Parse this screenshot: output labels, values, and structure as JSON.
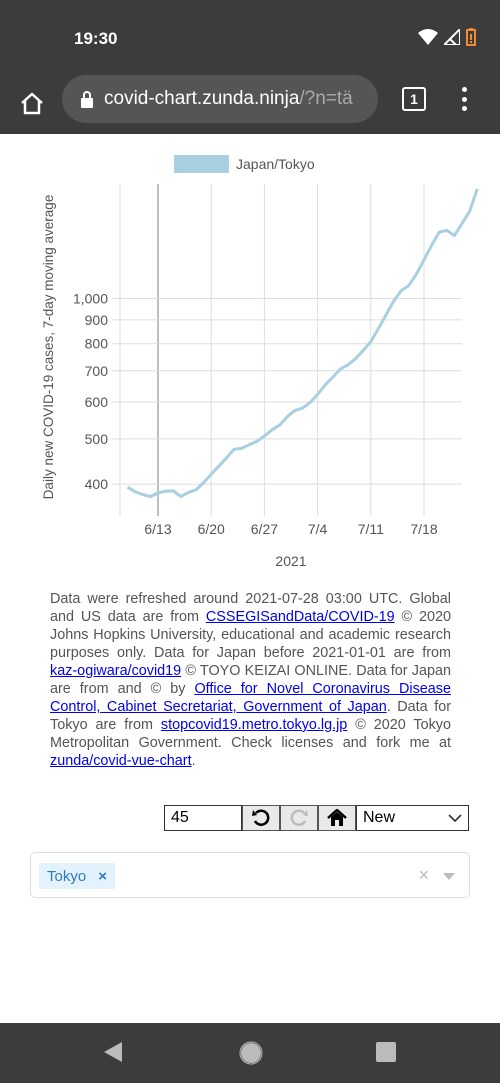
{
  "status_bar": {
    "time": "19:30"
  },
  "browser": {
    "url_host": "covid-chart.zunda.ninja",
    "url_path": "/?n=tä",
    "tab_count": "1"
  },
  "chart_data": {
    "type": "line",
    "y_scale": "log",
    "legend": "Japan/Tokyo",
    "xlabel": "2021",
    "ylabel": "Daily new COVID-19 cases, 7-day moving average",
    "x_ticks": [
      "6/13",
      "6/20",
      "6/27",
      "7/4",
      "7/11",
      "7/18"
    ],
    "y_ticks": [
      "400",
      "500",
      "600",
      "700",
      "800",
      "900",
      "1,000"
    ],
    "y_tick_values": [
      400,
      500,
      600,
      700,
      800,
      900,
      1000
    ],
    "series": [
      {
        "name": "Japan/Tokyo",
        "color": "#a9cfe2",
        "x": [
          "2021-06-09",
          "2021-06-10",
          "2021-06-11",
          "2021-06-12",
          "2021-06-13",
          "2021-06-14",
          "2021-06-15",
          "2021-06-16",
          "2021-06-17",
          "2021-06-18",
          "2021-06-19",
          "2021-06-20",
          "2021-06-21",
          "2021-06-22",
          "2021-06-23",
          "2021-06-24",
          "2021-06-25",
          "2021-06-26",
          "2021-06-27",
          "2021-06-28",
          "2021-06-29",
          "2021-06-30",
          "2021-07-01",
          "2021-07-02",
          "2021-07-03",
          "2021-07-04",
          "2021-07-05",
          "2021-07-06",
          "2021-07-07",
          "2021-07-08",
          "2021-07-09",
          "2021-07-10",
          "2021-07-11",
          "2021-07-12",
          "2021-07-13",
          "2021-07-14",
          "2021-07-15",
          "2021-07-16",
          "2021-07-17",
          "2021-07-18",
          "2021-07-19",
          "2021-07-20",
          "2021-07-21",
          "2021-07-22",
          "2021-07-23",
          "2021-07-24",
          "2021-07-25"
        ],
        "values": [
          394,
          385,
          380,
          376,
          383,
          386,
          387,
          376,
          384,
          389,
          403,
          420,
          437,
          455,
          475,
          477,
          486,
          494,
          507,
          523,
          535,
          558,
          575,
          582,
          598,
          623,
          653,
          678,
          706,
          721,
          743,
          774,
          808,
          862,
          922,
          987,
          1040,
          1066,
          1128,
          1210,
          1300,
          1388,
          1400,
          1364,
          1448,
          1537,
          1718
        ]
      }
    ]
  },
  "footer": {
    "p1": "Data were refreshed around 2021-07-28 03:00 UTC. Global and US data are from ",
    "link1": "CSSEGISandData/COVID-19",
    "p2": " © 2020 Johns Hopkins University, educational and academic research purposes only. Data for Japan before 2021-01-01 are from ",
    "link2": "kaz-ogiwara/covid19",
    "p3": " © TOYO KEIZAI ONLINE. Data for Japan are from and © by ",
    "link3": "Office for Novel Coronavirus Disease Control, Cabinet Secretariat, Government of Japan",
    "p4": ". Data for Tokyo are from ",
    "link4": "stopcovid19.metro.tokyo.lg.jp",
    "p5": " © 2020 Tokyo Metropolitan Government. Check licenses and fork me at ",
    "link5": "zunda/covid-vue-chart",
    "p6": "."
  },
  "controls": {
    "days_value": "45",
    "mode_selected": "New"
  },
  "region_select": {
    "tags": [
      "Tokyo"
    ],
    "remove_glyph": "×",
    "clear_glyph": "×"
  },
  "icons": {
    "home": "home-icon",
    "lock": "lock-icon",
    "undo": "undo-icon",
    "redo": "redo-icon",
    "reset": "reset-home-icon"
  }
}
